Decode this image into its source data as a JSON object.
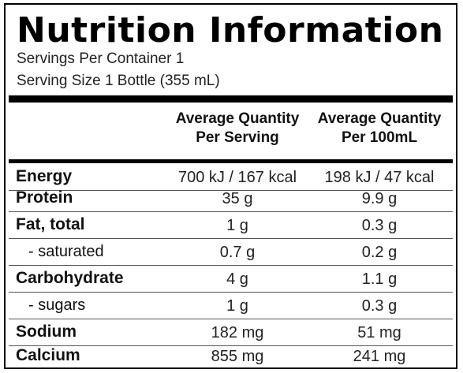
{
  "panel": {
    "title": "Nutrition Information",
    "servings_per_container": "Servings Per Container 1",
    "serving_size": "Serving Size 1 Bottle (355 mL)"
  },
  "table": {
    "headers": [
      {
        "line1": "Average Quantity",
        "line2": "Per Serving"
      },
      {
        "line1": "Average Quantity",
        "line2": "Per 100mL"
      }
    ],
    "rows": [
      {
        "label": "Energy",
        "per_serving": "700 kJ / 167 kcal",
        "per_100ml": "198 kJ / 47 kcal"
      },
      {
        "label": "Protein",
        "per_serving": "35 g",
        "per_100ml": "9.9 g"
      },
      {
        "label": "Fat, total",
        "per_serving": "1 g",
        "per_100ml": "0.3 g"
      },
      {
        "label": "- saturated",
        "per_serving": "0.7 g",
        "per_100ml": "0.2 g"
      },
      {
        "label": "Carbohydrate",
        "per_serving": "4 g",
        "per_100ml": "1.1 g"
      },
      {
        "label": "- sugars",
        "per_serving": "1 g",
        "per_100ml": "0.3 g"
      },
      {
        "label": "Sodium",
        "per_serving": "182 mg",
        "per_100ml": "51 mg"
      },
      {
        "label": "Calcium",
        "per_serving": "855 mg",
        "per_100ml": "241 mg"
      }
    ]
  }
}
